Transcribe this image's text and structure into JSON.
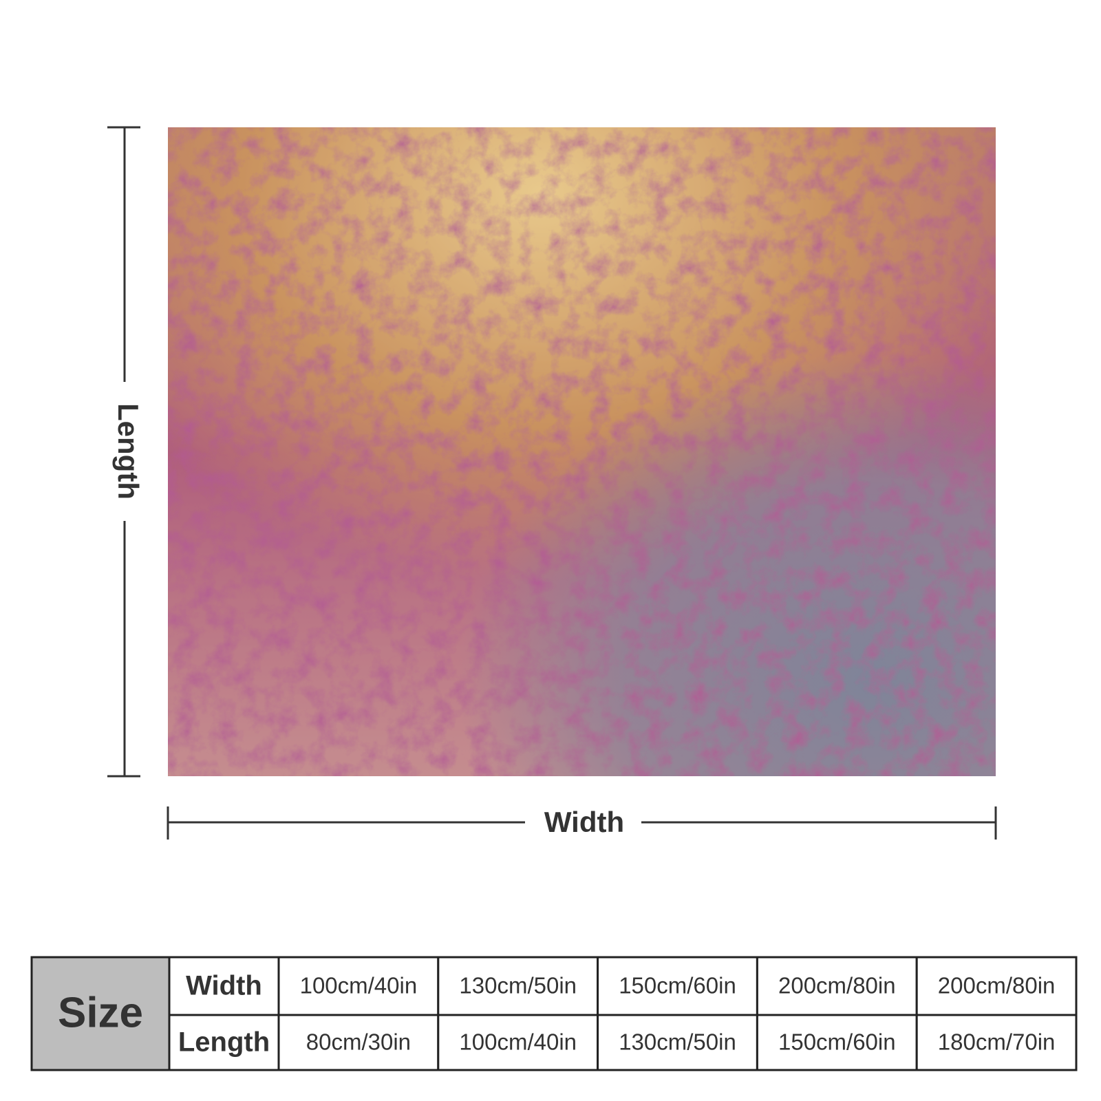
{
  "dimensions": {
    "length": "Length",
    "width": "Width"
  },
  "table": {
    "header": "Size",
    "rows": [
      {
        "label": "Width",
        "cells": [
          "100cm/40in",
          "130cm/50in",
          "150cm/60in",
          "200cm/80in",
          "200cm/80in"
        ]
      },
      {
        "label": "Length",
        "cells": [
          "80cm/30in",
          "100cm/40in",
          "130cm/50in",
          "150cm/60in",
          "180cm/70in"
        ]
      }
    ]
  }
}
